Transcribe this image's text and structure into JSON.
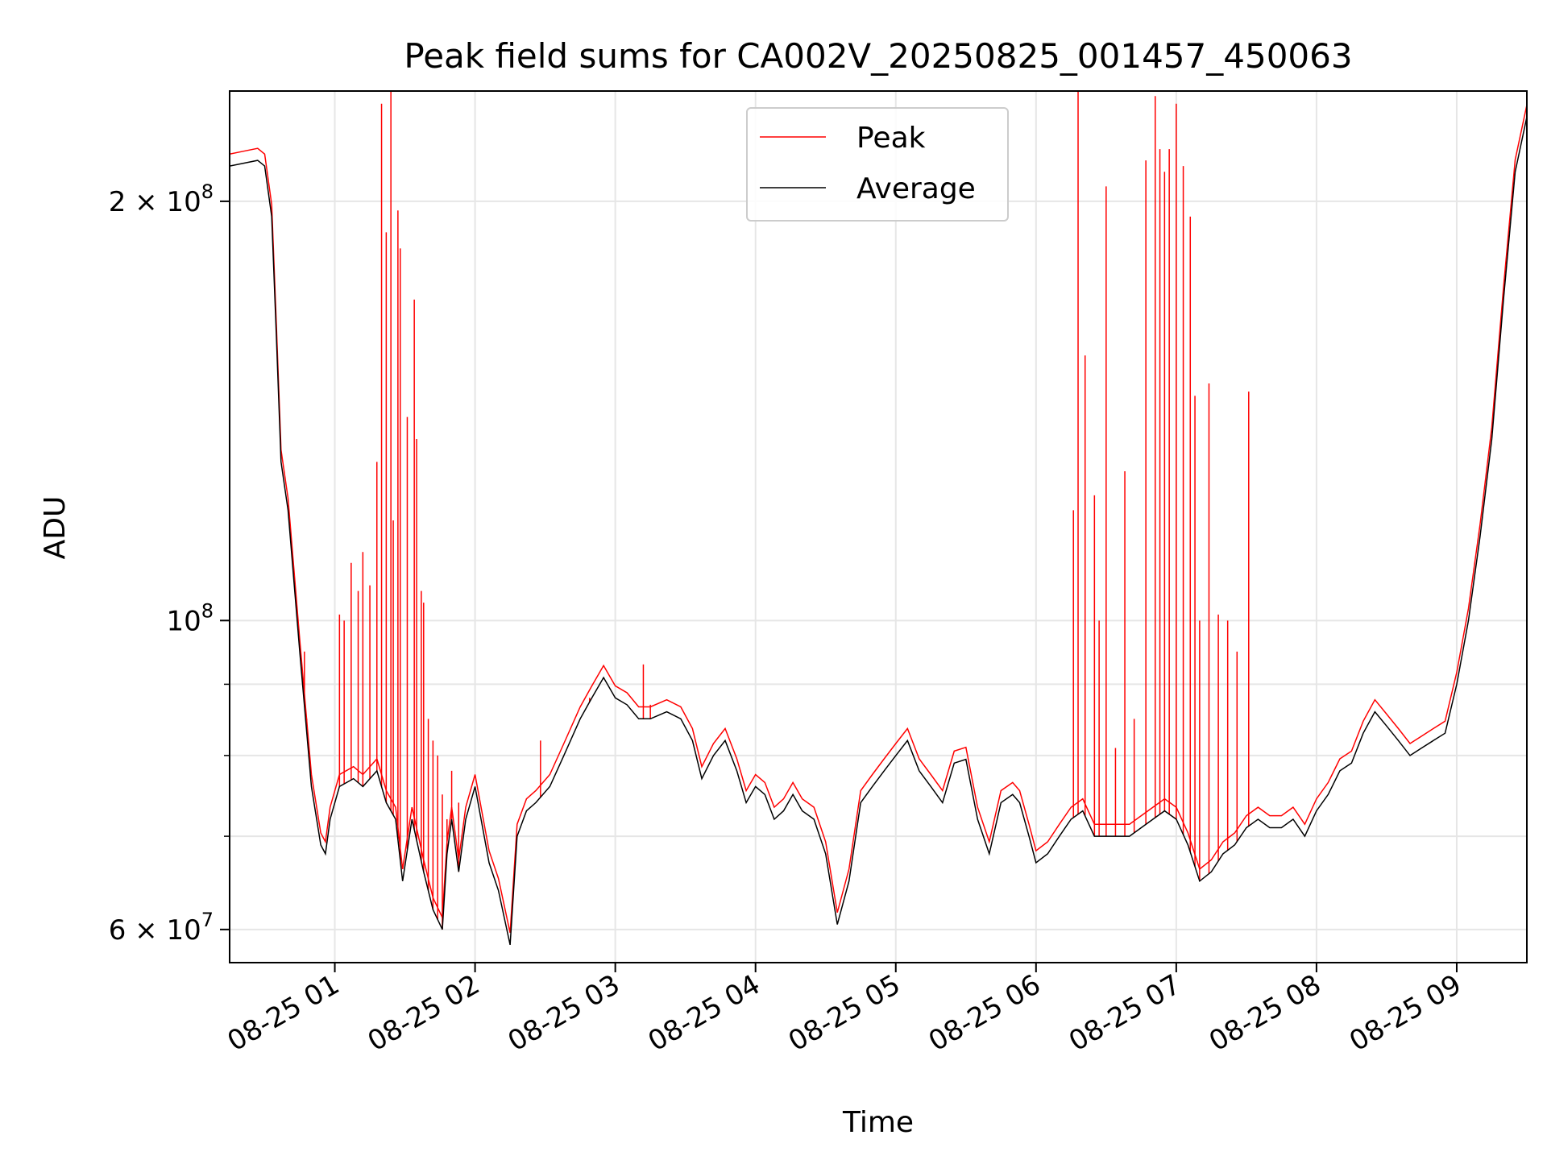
{
  "chart_data": {
    "type": "line",
    "title": "Peak field sums for CA002V_20250825_001457_450063",
    "xlabel": "Time",
    "ylabel": "ADU",
    "y_scale": "log",
    "grid": true,
    "legend_position": "upper-center",
    "xlim": [
      "2025-08-25 00:15",
      "2025-08-25 09:30"
    ],
    "ylim": [
      56800000,
      240000000
    ],
    "x_ticks": [
      {
        "value": "2025-08-25 01:00",
        "label": "08-25 01"
      },
      {
        "value": "2025-08-25 02:00",
        "label": "08-25 02"
      },
      {
        "value": "2025-08-25 03:00",
        "label": "08-25 03"
      },
      {
        "value": "2025-08-25 04:00",
        "label": "08-25 04"
      },
      {
        "value": "2025-08-25 05:00",
        "label": "08-25 05"
      },
      {
        "value": "2025-08-25 06:00",
        "label": "08-25 06"
      },
      {
        "value": "2025-08-25 07:00",
        "label": "08-25 07"
      },
      {
        "value": "2025-08-25 08:00",
        "label": "08-25 08"
      },
      {
        "value": "2025-08-25 09:00",
        "label": "08-25 09"
      }
    ],
    "y_major_ticks": [
      {
        "value": 60000000,
        "base": "6 × 10",
        "exp": "7"
      },
      {
        "value": 100000000,
        "base": "10",
        "exp": "8"
      },
      {
        "value": 200000000,
        "base": "2 × 10",
        "exp": "8"
      }
    ],
    "y_minor_ticks": [
      70000000,
      80000000,
      90000000
    ],
    "series": [
      {
        "name": "Average",
        "color": "#000000",
        "x": [
          "2025-08-25 00:15",
          "2025-08-25 00:21",
          "2025-08-25 00:27",
          "2025-08-25 00:30",
          "2025-08-25 00:33",
          "2025-08-25 00:35",
          "2025-08-25 00:37",
          "2025-08-25 00:40",
          "2025-08-25 00:45",
          "2025-08-25 00:50",
          "2025-08-25 00:54",
          "2025-08-25 00:56",
          "2025-08-25 00:58",
          "2025-08-25 01:02",
          "2025-08-25 01:08",
          "2025-08-25 01:12",
          "2025-08-25 01:18",
          "2025-08-25 01:22",
          "2025-08-25 01:26",
          "2025-08-25 01:29",
          "2025-08-25 01:33",
          "2025-08-25 01:38",
          "2025-08-25 01:42",
          "2025-08-25 01:46",
          "2025-08-25 01:48",
          "2025-08-25 01:50",
          "2025-08-25 01:53",
          "2025-08-25 01:56",
          "2025-08-25 02:00",
          "2025-08-25 02:06",
          "2025-08-25 02:10",
          "2025-08-25 02:15",
          "2025-08-25 02:18",
          "2025-08-25 02:22",
          "2025-08-25 02:26",
          "2025-08-25 02:32",
          "2025-08-25 02:38",
          "2025-08-25 02:45",
          "2025-08-25 02:50",
          "2025-08-25 02:55",
          "2025-08-25 03:00",
          "2025-08-25 03:05",
          "2025-08-25 03:10",
          "2025-08-25 03:15",
          "2025-08-25 03:22",
          "2025-08-25 03:28",
          "2025-08-25 03:33",
          "2025-08-25 03:37",
          "2025-08-25 03:42",
          "2025-08-25 03:47",
          "2025-08-25 03:52",
          "2025-08-25 03:56",
          "2025-08-25 04:00",
          "2025-08-25 04:04",
          "2025-08-25 04:08",
          "2025-08-25 04:12",
          "2025-08-25 04:16",
          "2025-08-25 04:20",
          "2025-08-25 04:25",
          "2025-08-25 04:30",
          "2025-08-25 04:35",
          "2025-08-25 04:40",
          "2025-08-25 04:45",
          "2025-08-25 04:50",
          "2025-08-25 04:55",
          "2025-08-25 05:00",
          "2025-08-25 05:05",
          "2025-08-25 05:10",
          "2025-08-25 05:15",
          "2025-08-25 05:20",
          "2025-08-25 05:25",
          "2025-08-25 05:30",
          "2025-08-25 05:35",
          "2025-08-25 05:40",
          "2025-08-25 05:45",
          "2025-08-25 05:50",
          "2025-08-25 05:53",
          "2025-08-25 05:57",
          "2025-08-25 06:00",
          "2025-08-25 06:05",
          "2025-08-25 06:10",
          "2025-08-25 06:15",
          "2025-08-25 06:20",
          "2025-08-25 06:25",
          "2025-08-25 06:30",
          "2025-08-25 06:35",
          "2025-08-25 06:40",
          "2025-08-25 06:45",
          "2025-08-25 06:50",
          "2025-08-25 06:55",
          "2025-08-25 07:00",
          "2025-08-25 07:05",
          "2025-08-25 07:10",
          "2025-08-25 07:15",
          "2025-08-25 07:20",
          "2025-08-25 07:25",
          "2025-08-25 07:30",
          "2025-08-25 07:35",
          "2025-08-25 07:40",
          "2025-08-25 07:45",
          "2025-08-25 07:50",
          "2025-08-25 07:55",
          "2025-08-25 08:00",
          "2025-08-25 08:05",
          "2025-08-25 08:10",
          "2025-08-25 08:15",
          "2025-08-25 08:20",
          "2025-08-25 08:25",
          "2025-08-25 08:30",
          "2025-08-25 08:35",
          "2025-08-25 08:40",
          "2025-08-25 08:45",
          "2025-08-25 08:50",
          "2025-08-25 08:55",
          "2025-08-25 09:00",
          "2025-08-25 09:05",
          "2025-08-25 09:10",
          "2025-08-25 09:15",
          "2025-08-25 09:20",
          "2025-08-25 09:25",
          "2025-08-25 09:30"
        ],
        "values": [
          212000000,
          213000000,
          214000000,
          212000000,
          195000000,
          160000000,
          130000000,
          120000000,
          95000000,
          76000000,
          69000000,
          68000000,
          72000000,
          76000000,
          77000000,
          76000000,
          78000000,
          74000000,
          72000000,
          65000000,
          72000000,
          66000000,
          62000000,
          60000000,
          68000000,
          72000000,
          66000000,
          72000000,
          76000000,
          67000000,
          64000000,
          58500000,
          70000000,
          73000000,
          74000000,
          76000000,
          80000000,
          85000000,
          88000000,
          91000000,
          88000000,
          87000000,
          85000000,
          85000000,
          86000000,
          85000000,
          82000000,
          77000000,
          80000000,
          82000000,
          78000000,
          74000000,
          76000000,
          75000000,
          72000000,
          73000000,
          75000000,
          73000000,
          72000000,
          68000000,
          60500000,
          65000000,
          74000000,
          76000000,
          78000000,
          80000000,
          82000000,
          78000000,
          76000000,
          74000000,
          79000000,
          79500000,
          72000000,
          68000000,
          74000000,
          75000000,
          74000000,
          70000000,
          67000000,
          68000000,
          70000000,
          72000000,
          73000000,
          70000000,
          70000000,
          70000000,
          70000000,
          71000000,
          72000000,
          73000000,
          72000000,
          69000000,
          65000000,
          66000000,
          68000000,
          69000000,
          71000000,
          72000000,
          71000000,
          71000000,
          72000000,
          70000000,
          73000000,
          75000000,
          78000000,
          79000000,
          83000000,
          86000000,
          84000000,
          82000000,
          80000000,
          81000000,
          82000000,
          83000000,
          90000000,
          100000000,
          115000000,
          135000000,
          170000000,
          210000000,
          230000000
        ]
      },
      {
        "name": "Peak",
        "color": "#ff0000",
        "spike_times": [
          "2025-08-25 00:47",
          "2025-08-25 00:48",
          "2025-08-25 01:02",
          "2025-08-25 01:04",
          "2025-08-25 01:07",
          "2025-08-25 01:10",
          "2025-08-25 01:12",
          "2025-08-25 01:15",
          "2025-08-25 01:18",
          "2025-08-25 01:20",
          "2025-08-25 01:22",
          "2025-08-25 01:24",
          "2025-08-25 01:25",
          "2025-08-25 01:27",
          "2025-08-25 01:28",
          "2025-08-25 01:31",
          "2025-08-25 01:34",
          "2025-08-25 01:35",
          "2025-08-25 01:37",
          "2025-08-25 01:38",
          "2025-08-25 01:40",
          "2025-08-25 01:42",
          "2025-08-25 01:44",
          "2025-08-25 01:46",
          "2025-08-25 01:48",
          "2025-08-25 01:50",
          "2025-08-25 01:53",
          "2025-08-25 02:28",
          "2025-08-25 02:49",
          "2025-08-25 03:12",
          "2025-08-25 03:15",
          "2025-08-25 06:16",
          "2025-08-25 06:18",
          "2025-08-25 06:21",
          "2025-08-25 06:25",
          "2025-08-25 06:27",
          "2025-08-25 06:30",
          "2025-08-25 06:34",
          "2025-08-25 06:38",
          "2025-08-25 06:42",
          "2025-08-25 06:47",
          "2025-08-25 06:51",
          "2025-08-25 06:53",
          "2025-08-25 06:55",
          "2025-08-25 06:57",
          "2025-08-25 07:00",
          "2025-08-25 07:03",
          "2025-08-25 07:06",
          "2025-08-25 07:08",
          "2025-08-25 07:10",
          "2025-08-25 07:14",
          "2025-08-25 07:18",
          "2025-08-25 07:22",
          "2025-08-25 07:26",
          "2025-08-25 07:31"
        ],
        "spike_values": [
          95000000,
          85000000,
          101000000,
          100000000,
          110000000,
          105000000,
          112000000,
          106000000,
          130000000,
          235000000,
          190000000,
          240000000,
          118000000,
          197000000,
          185000000,
          140000000,
          170000000,
          135000000,
          105000000,
          103000000,
          85000000,
          82000000,
          80000000,
          75000000,
          72000000,
          78000000,
          74000000,
          82000000,
          88000000,
          93000000,
          87000000,
          120000000,
          240000000,
          155000000,
          123000000,
          100000000,
          205000000,
          81000000,
          128000000,
          85000000,
          214000000,
          238000000,
          218000000,
          210000000,
          218000000,
          235000000,
          212000000,
          195000000,
          145000000,
          100000000,
          148000000,
          101000000,
          100000000,
          95000000,
          146000000
        ]
      }
    ]
  }
}
